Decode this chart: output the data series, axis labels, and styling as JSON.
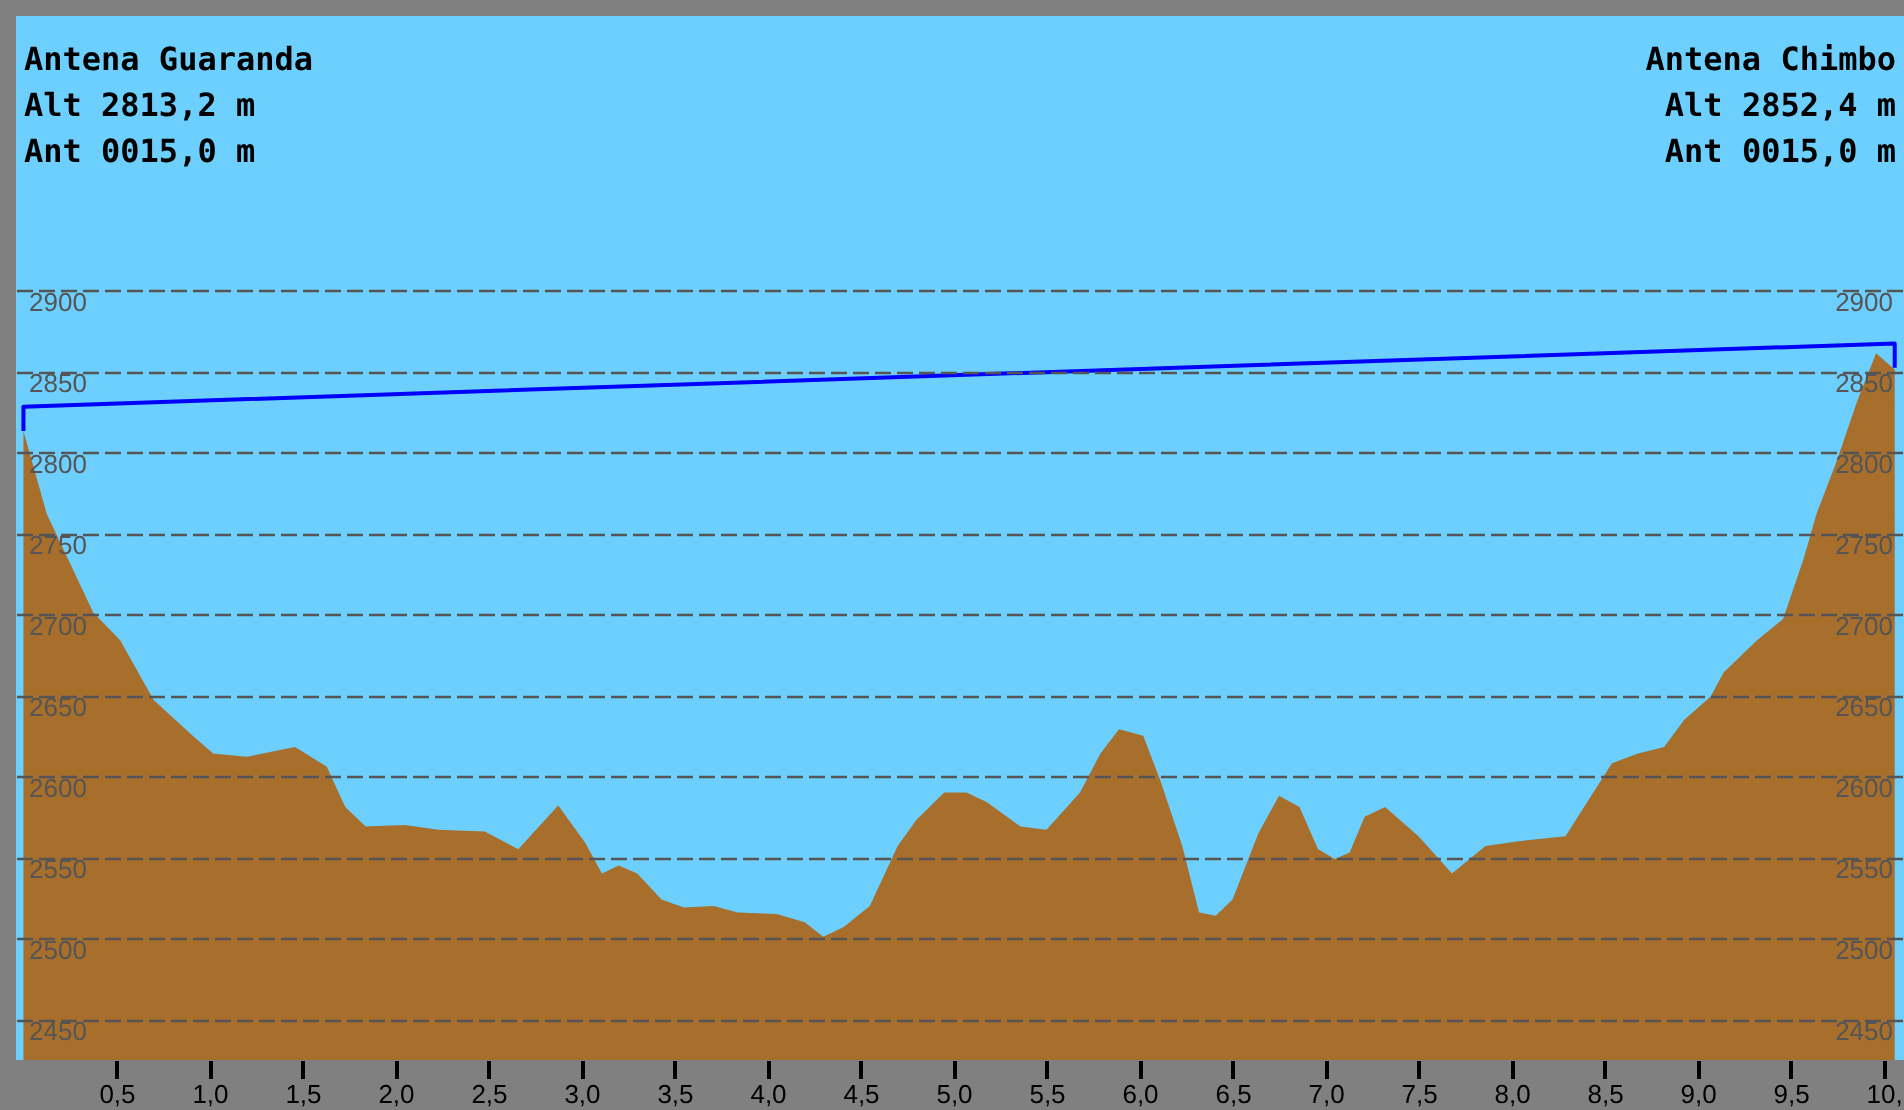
{
  "chart_data": {
    "type": "area",
    "xlim": [
      -0.04,
      10.11
    ],
    "ylim": [
      2425,
      3069
    ],
    "xticks": [
      {
        "value": 0.5,
        "label": "0,5"
      },
      {
        "value": 1,
        "label": "1,0"
      },
      {
        "value": 1.5,
        "label": "1,5"
      },
      {
        "value": 2,
        "label": "2,0"
      },
      {
        "value": 2.5,
        "label": "2,5"
      },
      {
        "value": 3,
        "label": "3,0"
      },
      {
        "value": 3.5,
        "label": "3,5"
      },
      {
        "value": 4,
        "label": "4,0"
      },
      {
        "value": 4.5,
        "label": "4,5"
      },
      {
        "value": 5,
        "label": "5,0"
      },
      {
        "value": 5.5,
        "label": "5,5"
      },
      {
        "value": 6,
        "label": "6,0"
      },
      {
        "value": 6.5,
        "label": "6,5"
      },
      {
        "value": 7,
        "label": "7,0"
      },
      {
        "value": 7.5,
        "label": "7,5"
      },
      {
        "value": 8,
        "label": "8,0"
      },
      {
        "value": 8.5,
        "label": "8,5"
      },
      {
        "value": 9,
        "label": "9,0"
      },
      {
        "value": 9.5,
        "label": "9,5"
      },
      {
        "value": 10,
        "label": "10,"
      }
    ],
    "yticks": [
      2450,
      2500,
      2550,
      2600,
      2650,
      2700,
      2750,
      2800,
      2850,
      2900
    ],
    "y2lim": [
      2425,
      3069
    ],
    "y2ticks": [
      2450,
      2500,
      2550,
      2600,
      2650,
      2700,
      2750,
      2800,
      2850,
      2900
    ],
    "grid": "y",
    "annotations": [
      "Antena Guaranda",
      "Alt 2813,2 m",
      "Ant 0015,0 m",
      "Antena Chimbo",
      "Alt 2852,4 m",
      "Ant 0015,0 m"
    ],
    "series": [
      {
        "color": "#a86e2c",
        "x": [
          0,
          0.125,
          0.375,
          0.52,
          0.7,
          0.91,
          1.02,
          1.2,
          1.46,
          1.63,
          1.73,
          1.84,
          2.05,
          2.23,
          2.48,
          2.66,
          2.875,
          3.02,
          3.11,
          3.2,
          3.3,
          3.43,
          3.55,
          3.71,
          3.84,
          4.05,
          4.2,
          4.3,
          4.41,
          4.55,
          4.7,
          4.8,
          4.95,
          5.07,
          5.18,
          5.36,
          5.5,
          5.68,
          5.79,
          5.89,
          6.02,
          6.11,
          6.23,
          6.32,
          6.41,
          6.5,
          6.64,
          6.75,
          6.86,
          6.96,
          7.05,
          7.13,
          7.21,
          7.32,
          7.5,
          7.68,
          7.86,
          8.04,
          8.29,
          8.39,
          8.54,
          8.68,
          8.82,
          8.93,
          9.07,
          9.14,
          9.32,
          9.46,
          9.57,
          9.64,
          9.75,
          9.86,
          9.96,
          10.06
        ],
        "values": [
          2813,
          2762,
          2701,
          2684,
          2647,
          2625,
          2614,
          2612,
          2618,
          2606,
          2581,
          2569,
          2570,
          2567,
          2566,
          2555,
          2582,
          2559,
          2540,
          2545,
          2540,
          2524,
          2519,
          2520,
          2516,
          2515,
          2510,
          2501,
          2507,
          2520,
          2557,
          2573,
          2590,
          2590,
          2584,
          2569,
          2567,
          2590,
          2614,
          2629,
          2625,
          2598,
          2557,
          2516,
          2514,
          2524,
          2565,
          2588,
          2581,
          2555,
          2549,
          2553,
          2575,
          2581,
          2563,
          2540,
          2557,
          2560,
          2563,
          2581,
          2608,
          2614,
          2618,
          2635,
          2649,
          2664,
          2684,
          2697,
          2734,
          2762,
          2795,
          2832,
          2861,
          2851
        ]
      },
      {
        "type": "line",
        "color": "#0000ff",
        "x": [
          0,
          0,
          10.06,
          10.06
        ],
        "values": [
          2813,
          2828,
          2867,
          2852
        ]
      }
    ]
  }
}
